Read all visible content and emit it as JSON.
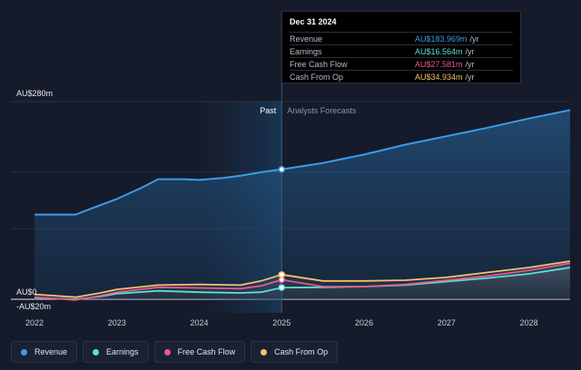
{
  "tooltip": {
    "date": "Dec 31 2024",
    "rows": [
      {
        "name": "Revenue",
        "value": "AU$183.969m",
        "unit": "/yr",
        "color": "#3d9be9"
      },
      {
        "name": "Earnings",
        "value": "AU$16.564m",
        "unit": "/yr",
        "color": "#5de0d0"
      },
      {
        "name": "Free Cash Flow",
        "value": "AU$27.581m",
        "unit": "/yr",
        "color": "#e8578f"
      },
      {
        "name": "Cash From Op",
        "value": "AU$34.934m",
        "unit": "/yr",
        "color": "#f2c46d"
      }
    ]
  },
  "labels": {
    "past": "Past",
    "forecast": "Analysts Forecasts"
  },
  "legend": [
    {
      "name": "Revenue",
      "color": "#3d9be9"
    },
    {
      "name": "Earnings",
      "color": "#5de0d0"
    },
    {
      "name": "Free Cash Flow",
      "color": "#e8578f"
    },
    {
      "name": "Cash From Op",
      "color": "#f2c46d"
    }
  ],
  "chart_data": {
    "type": "line",
    "x_ticks": [
      "2022",
      "2023",
      "2024",
      "2025",
      "2026",
      "2027",
      "2028"
    ],
    "y_tick_labels": [
      {
        "value": 280,
        "label": "AU$280m"
      },
      {
        "value": 0,
        "label": "AU$0"
      },
      {
        "value": -20,
        "label": "-AU$20m"
      }
    ],
    "ylim": [
      -20,
      280
    ],
    "xlim": [
      2022,
      2028.5
    ],
    "divider_x": 2025.0,
    "series": [
      {
        "name": "Revenue",
        "color": "#3d9be9",
        "points": [
          [
            2022.0,
            120
          ],
          [
            2022.5,
            120
          ],
          [
            2022.7,
            129
          ],
          [
            2023.0,
            142
          ],
          [
            2023.3,
            158
          ],
          [
            2023.5,
            170
          ],
          [
            2023.8,
            170
          ],
          [
            2024.0,
            169
          ],
          [
            2024.3,
            172
          ],
          [
            2024.5,
            175
          ],
          [
            2024.75,
            180
          ],
          [
            2025.0,
            184
          ],
          [
            2025.5,
            193
          ],
          [
            2026.0,
            205
          ],
          [
            2026.5,
            219
          ],
          [
            2027.0,
            231
          ],
          [
            2027.5,
            243
          ],
          [
            2028.0,
            256
          ],
          [
            2028.5,
            268
          ]
        ]
      },
      {
        "name": "Earnings",
        "color": "#5de0d0",
        "points": [
          [
            2022.0,
            2
          ],
          [
            2022.5,
            0
          ],
          [
            2022.8,
            4
          ],
          [
            2023.0,
            8
          ],
          [
            2023.5,
            12
          ],
          [
            2024.0,
            10
          ],
          [
            2024.5,
            9
          ],
          [
            2024.75,
            10
          ],
          [
            2025.0,
            16.6
          ],
          [
            2025.5,
            17
          ],
          [
            2026.0,
            18
          ],
          [
            2026.5,
            20
          ],
          [
            2027.0,
            25
          ],
          [
            2027.5,
            30
          ],
          [
            2028.0,
            36
          ],
          [
            2028.5,
            45
          ]
        ]
      },
      {
        "name": "Free Cash Flow",
        "color": "#e8578f",
        "points": [
          [
            2022.0,
            3
          ],
          [
            2022.5,
            -1
          ],
          [
            2022.8,
            5
          ],
          [
            2023.0,
            10
          ],
          [
            2023.5,
            17
          ],
          [
            2024.0,
            16
          ],
          [
            2024.5,
            15
          ],
          [
            2024.75,
            19
          ],
          [
            2025.0,
            27.6
          ],
          [
            2025.5,
            18
          ],
          [
            2026.0,
            18
          ],
          [
            2026.5,
            21
          ],
          [
            2027.0,
            27
          ],
          [
            2027.5,
            33
          ],
          [
            2028.0,
            41
          ],
          [
            2028.5,
            51
          ]
        ]
      },
      {
        "name": "Cash From Op",
        "color": "#f2c46d",
        "points": [
          [
            2022.0,
            7
          ],
          [
            2022.5,
            3
          ],
          [
            2022.8,
            9
          ],
          [
            2023.0,
            14
          ],
          [
            2023.5,
            20
          ],
          [
            2024.0,
            21
          ],
          [
            2024.5,
            20
          ],
          [
            2024.75,
            26
          ],
          [
            2025.0,
            34.9
          ],
          [
            2025.5,
            26
          ],
          [
            2026.0,
            26
          ],
          [
            2026.5,
            27
          ],
          [
            2027.0,
            31
          ],
          [
            2027.5,
            38
          ],
          [
            2028.0,
            45
          ],
          [
            2028.5,
            54
          ]
        ]
      }
    ]
  }
}
